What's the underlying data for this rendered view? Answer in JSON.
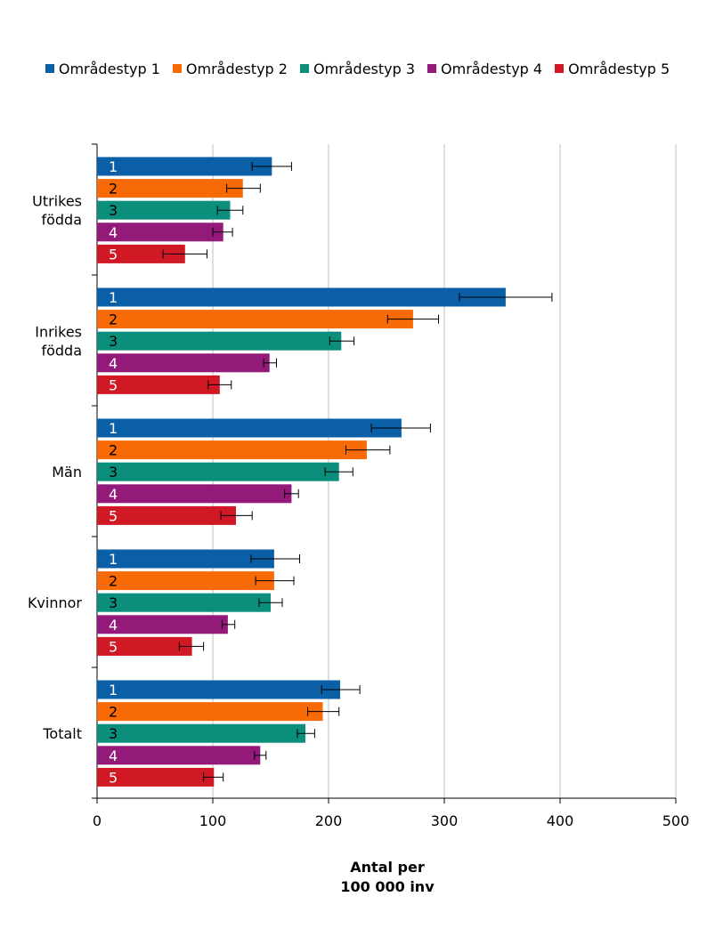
{
  "chart_data": {
    "type": "bar",
    "orientation": "horizontal",
    "xlabel_lines": [
      "Antal per",
      "100 000 inv"
    ],
    "xlim": [
      0,
      500
    ],
    "xticks": [
      "0",
      "100",
      "200",
      "300",
      "400",
      "500"
    ],
    "xtick_values": [
      0,
      100,
      200,
      300,
      400,
      500
    ],
    "grid": "vertical",
    "legend_position": "top",
    "groups": [
      {
        "label_lines": [
          "Utrikes",
          "födda"
        ]
      },
      {
        "label_lines": [
          "Inrikes",
          "födda"
        ]
      },
      {
        "label_lines": [
          "Män"
        ]
      },
      {
        "label_lines": [
          "Kvinnor"
        ]
      },
      {
        "label_lines": [
          "Totalt"
        ]
      }
    ],
    "series": [
      {
        "name": "Områdestyp 1",
        "bar_label": "1",
        "color": "#0a5fa7",
        "label_color": "#ffffff",
        "values": [
          151,
          353,
          263,
          153,
          210
        ],
        "err_low": [
          134,
          313,
          237,
          133,
          194
        ],
        "err_high": [
          168,
          393,
          288,
          175,
          227
        ]
      },
      {
        "name": "Områdestyp 2",
        "bar_label": "2",
        "color": "#f86a05",
        "label_color": "#000000",
        "values": [
          126,
          273,
          233,
          153,
          195
        ],
        "err_low": [
          112,
          251,
          215,
          137,
          182
        ],
        "err_high": [
          141,
          295,
          253,
          170,
          209
        ]
      },
      {
        "name": "Områdestyp 3",
        "bar_label": "3",
        "color": "#0b8f7c",
        "label_color": "#000000",
        "values": [
          115,
          211,
          209,
          150,
          180
        ],
        "err_low": [
          104,
          201,
          197,
          140,
          173
        ],
        "err_high": [
          126,
          222,
          221,
          160,
          188
        ]
      },
      {
        "name": "Områdestyp 4",
        "bar_label": "4",
        "color": "#941a7a",
        "label_color": "#ffffff",
        "values": [
          109,
          149,
          168,
          113,
          141
        ],
        "err_low": [
          100,
          144,
          162,
          108,
          136
        ],
        "err_high": [
          117,
          155,
          174,
          119,
          146
        ]
      },
      {
        "name": "Områdestyp 5",
        "bar_label": "5",
        "color": "#d11925",
        "label_color": "#ffffff",
        "values": [
          76,
          106,
          120,
          82,
          101
        ],
        "err_low": [
          57,
          96,
          107,
          71,
          92
        ],
        "err_high": [
          95,
          116,
          134,
          92,
          109
        ]
      }
    ]
  }
}
